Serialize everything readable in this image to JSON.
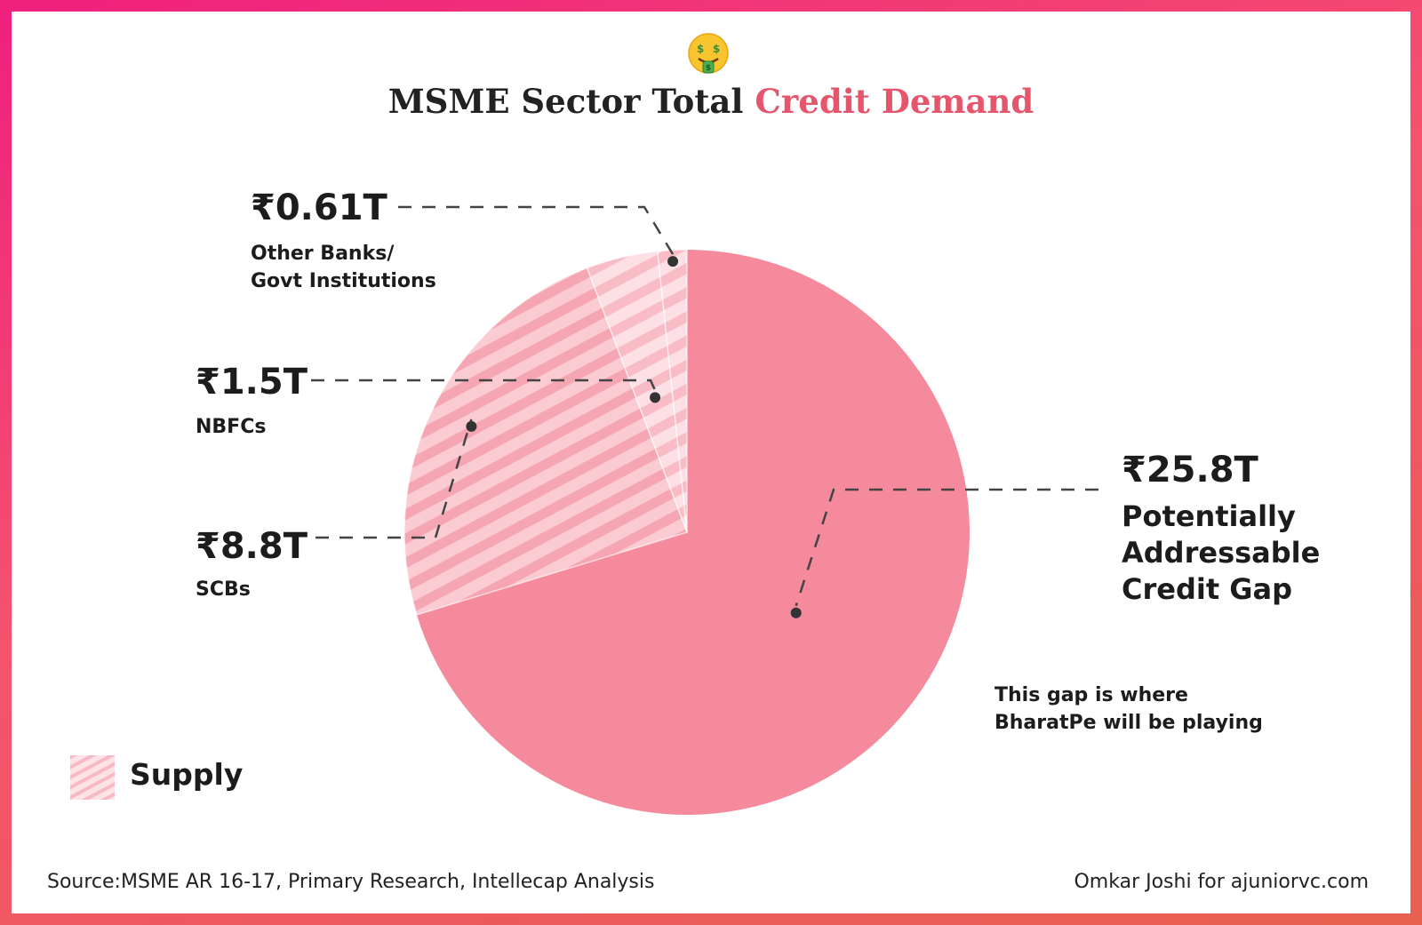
{
  "title": {
    "prefix": "MSME Sector Total",
    "accent": "Credit Demand"
  },
  "chart_data": {
    "type": "pie",
    "title": "MSME Sector Total Credit Demand",
    "unit": "₹ Trillion",
    "slices": [
      {
        "key": "gap",
        "value": 25.8,
        "value_label": "₹25.8T",
        "label_lines": [
          "Potentially",
          "Addressable",
          "Credit Gap"
        ],
        "supply": false
      },
      {
        "key": "scb",
        "value": 8.8,
        "value_label": "₹8.8T",
        "label_lines": [
          "SCBs"
        ],
        "supply": true
      },
      {
        "key": "nbfc",
        "value": 1.5,
        "value_label": "₹1.5T",
        "label_lines": [
          "NBFCs"
        ],
        "supply": true
      },
      {
        "key": "other",
        "value": 0.61,
        "value_label": "₹0.61T",
        "label_lines": [
          "Other Banks/",
          "Govt Institutions"
        ],
        "supply": true
      }
    ],
    "legend": {
      "label": "Supply",
      "position": "bottom-left"
    },
    "annotation": [
      "This gap is where",
      "BharatPe will be playing"
    ]
  },
  "colors": {
    "gap_fill": "#f48a9c",
    "supply_base": "#fbcbd3",
    "supply_stripe": "#f6a5b3",
    "accent": "#e5566d",
    "text": "#1c1c1c"
  },
  "footer": {
    "source": "Source:MSME AR 16-17, Primary Research, Intellecap Analysis",
    "credit": "Omkar Joshi for ajuniorvc.com"
  },
  "icons": {
    "header": "money-mouth-face-icon",
    "legend": "hatched-swatch-icon"
  }
}
